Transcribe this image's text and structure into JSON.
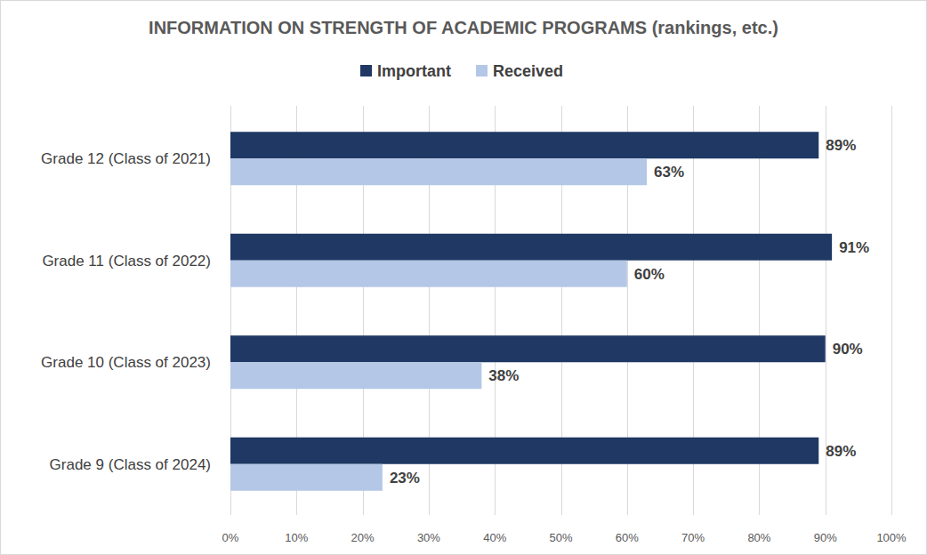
{
  "chart_data": {
    "type": "bar",
    "title": "INFORMATION ON STRENGTH OF ACADEMIC PROGRAMS (rankings, etc.)",
    "orientation": "horizontal",
    "categories": [
      "Grade 12 (Class of 2021)",
      "Grade 11 (Class of 2022)",
      "Grade 10 (Class of 2023)",
      "Grade 9 (Class of 2024)"
    ],
    "series": [
      {
        "name": "Important",
        "color": "#1f3864",
        "values": [
          89,
          91,
          90,
          89
        ],
        "value_labels": [
          "89%",
          "91%",
          "90%",
          "89%"
        ]
      },
      {
        "name": "Received",
        "color": "#b4c7e7",
        "values": [
          63,
          60,
          38,
          23
        ],
        "value_labels": [
          "63%",
          "60%",
          "38%",
          "23%"
        ]
      }
    ],
    "xlim": [
      0,
      100
    ],
    "xticks": [
      {
        "value": 0,
        "label": "0%"
      },
      {
        "value": 10,
        "label": "10%"
      },
      {
        "value": 20,
        "label": "20%"
      },
      {
        "value": 30,
        "label": "30%"
      },
      {
        "value": 40,
        "label": "40%"
      },
      {
        "value": 50,
        "label": "50%"
      },
      {
        "value": 60,
        "label": "60%"
      },
      {
        "value": 70,
        "label": "70%"
      },
      {
        "value": 80,
        "label": "80%"
      },
      {
        "value": 90,
        "label": "90%"
      },
      {
        "value": 100,
        "label": "100%"
      }
    ],
    "grid": true,
    "legend": "top",
    "data_labels": true
  }
}
